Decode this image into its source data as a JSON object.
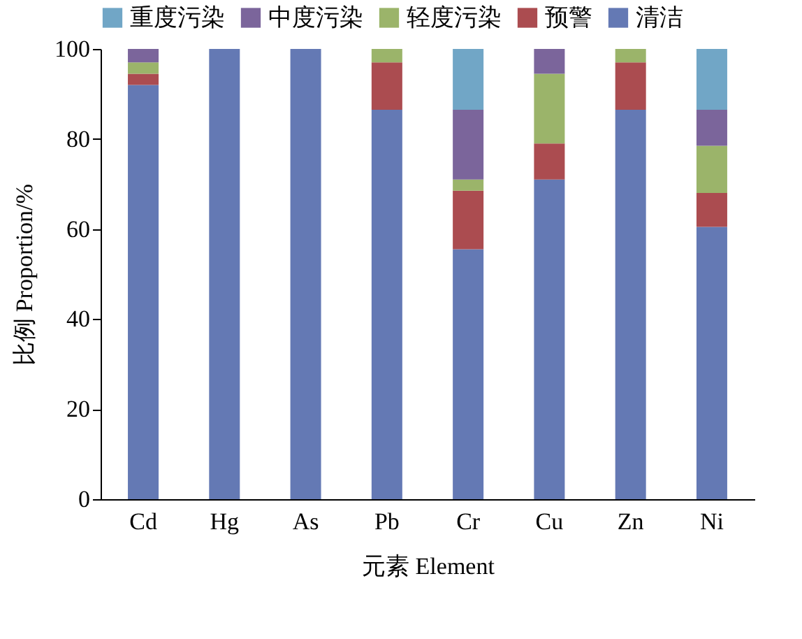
{
  "chart_data": {
    "type": "bar",
    "stacked": true,
    "xlabel": "元素 Element",
    "ylabel": "比例 Proportion/%",
    "categories": [
      "Cd",
      "Hg",
      "As",
      "Pb",
      "Cr",
      "Cu",
      "Zn",
      "Ni"
    ],
    "series": [
      {
        "name": "清洁",
        "color": "#6479b4",
        "values": [
          92,
          100,
          100,
          86.5,
          55.5,
          71,
          86.5,
          60.5
        ]
      },
      {
        "name": "预警",
        "color": "#ab4c50",
        "values": [
          2.5,
          0,
          0,
          10.5,
          13,
          8,
          10.5,
          7.5
        ]
      },
      {
        "name": "轻度污染",
        "color": "#9bb46a",
        "values": [
          2.5,
          0,
          0,
          3,
          2.5,
          15.5,
          3,
          10.5
        ]
      },
      {
        "name": "中度污染",
        "color": "#7b659b",
        "values": [
          3,
          0,
          0,
          0,
          15.5,
          5.5,
          0,
          8
        ]
      },
      {
        "name": "重度污染",
        "color": "#71a6c6",
        "values": [
          0,
          0,
          0,
          0,
          13.5,
          0,
          0,
          13.5
        ]
      }
    ],
    "ylim": [
      0,
      100
    ],
    "yticks": [
      0,
      20,
      40,
      60,
      80,
      100
    ],
    "grid": false,
    "legend": "top"
  }
}
